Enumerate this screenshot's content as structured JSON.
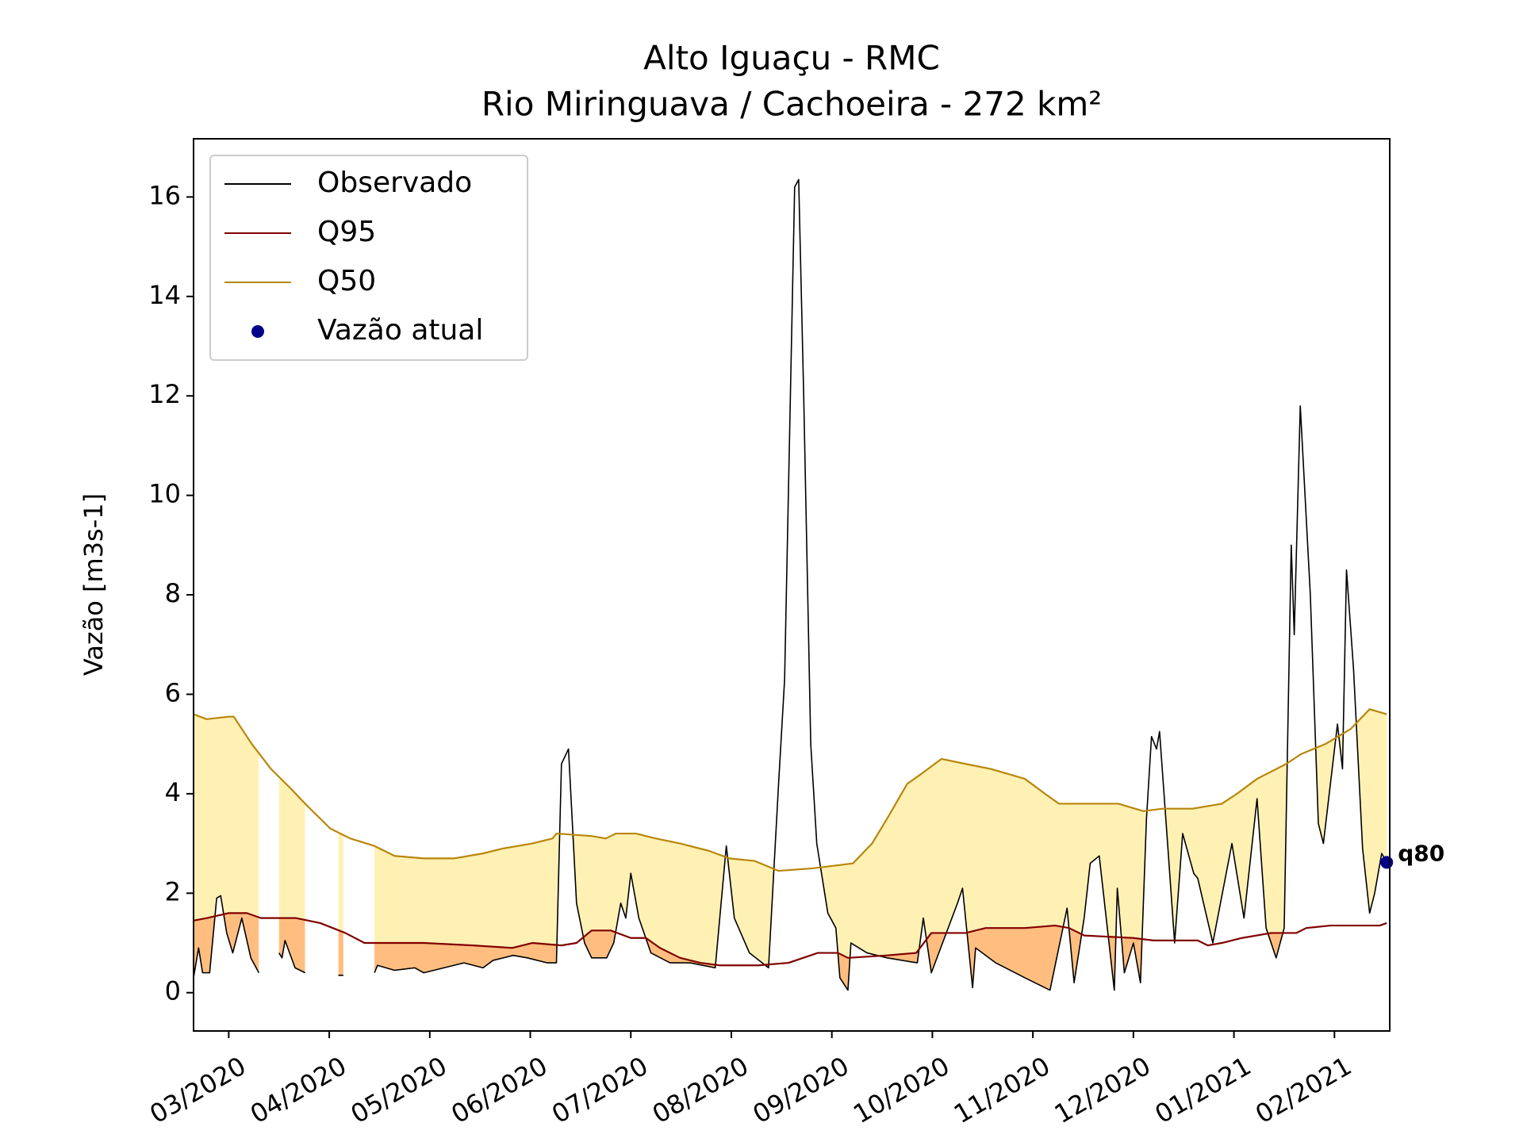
{
  "chart_data": {
    "type": "line",
    "title": "Alto Iguaçu - RMC",
    "subtitle": "Rio Miringuava / Cachoeira - 272 km²",
    "ylabel": "Vazão [m3s-1]",
    "xlim": [
      2.65,
      14.55
    ],
    "ylim": [
      -0.77,
      17.17
    ],
    "xticks": [
      {
        "value": 3,
        "label": "03/2020"
      },
      {
        "value": 4,
        "label": "04/2020"
      },
      {
        "value": 5,
        "label": "05/2020"
      },
      {
        "value": 6,
        "label": "06/2020"
      },
      {
        "value": 7,
        "label": "07/2020"
      },
      {
        "value": 8,
        "label": "08/2020"
      },
      {
        "value": 9,
        "label": "09/2020"
      },
      {
        "value": 10,
        "label": "10/2020"
      },
      {
        "value": 11,
        "label": "11/2020"
      },
      {
        "value": 12,
        "label": "12/2020"
      },
      {
        "value": 13,
        "label": "01/2021"
      },
      {
        "value": 14,
        "label": "02/2021"
      }
    ],
    "yticks": [
      0,
      2,
      4,
      6,
      8,
      10,
      12,
      14,
      16
    ],
    "grid": false,
    "legend": "upper left",
    "fills": [
      {
        "lower": 0,
        "upper": 2,
        "color": "#fff1b3"
      },
      {
        "lower": 0,
        "upper": 1,
        "color": "#ffbe80"
      }
    ],
    "series": [
      {
        "name": "Observado",
        "color": "#000000",
        "x": [
          2.65,
          2.7,
          2.74,
          2.81,
          2.88,
          2.92,
          2.98,
          3.04,
          3.13,
          3.22,
          3.3,
          3.4,
          3.5,
          3.53,
          3.56,
          3.66,
          3.76,
          3.9,
          4.09,
          4.14,
          4.3,
          4.45,
          4.48,
          4.65,
          4.85,
          4.94,
          5.14,
          5.34,
          5.53,
          5.63,
          5.83,
          5.97,
          6.17,
          6.26,
          6.31,
          6.38,
          6.46,
          6.54,
          6.61,
          6.76,
          6.83,
          6.9,
          6.95,
          7.0,
          7.08,
          7.2,
          7.39,
          7.59,
          7.84,
          7.95,
          8.03,
          8.18,
          8.37,
          8.47,
          8.53,
          8.63,
          8.67,
          8.72,
          8.79,
          8.85,
          8.96,
          9.04,
          9.08,
          9.16,
          9.19,
          9.35,
          9.55,
          9.85,
          9.91,
          9.99,
          10.25,
          10.3,
          10.4,
          10.43,
          10.63,
          10.92,
          11.17,
          11.34,
          11.41,
          11.51,
          11.57,
          11.66,
          11.81,
          11.84,
          11.91,
          12.0,
          12.07,
          12.13,
          12.18,
          12.23,
          12.26,
          12.34,
          12.41,
          12.49,
          12.6,
          12.64,
          12.79,
          12.98,
          13.1,
          13.23,
          13.32,
          13.42,
          13.5,
          13.57,
          13.6,
          13.66,
          13.76,
          13.84,
          13.89,
          14.03,
          14.08,
          14.12,
          14.19,
          14.28,
          14.35,
          14.4,
          14.47,
          14.52
        ],
        "values": [
          0.3,
          0.9,
          0.4,
          0.4,
          1.9,
          1.95,
          1.2,
          0.8,
          1.5,
          0.7,
          0.4,
          null,
          0.8,
          0.7,
          1.05,
          0.5,
          0.4,
          null,
          0.35,
          0.35,
          null,
          0.4,
          0.55,
          0.45,
          0.5,
          0.4,
          0.5,
          0.6,
          0.5,
          0.65,
          0.75,
          0.7,
          0.6,
          0.6,
          4.6,
          4.9,
          1.8,
          1.0,
          0.7,
          0.7,
          1.0,
          1.8,
          1.5,
          2.4,
          1.5,
          0.8,
          0.6,
          0.6,
          0.5,
          2.95,
          1.5,
          0.8,
          0.5,
          4.2,
          6.3,
          16.2,
          16.35,
          12.0,
          5.0,
          3.0,
          1.6,
          1.3,
          0.3,
          0.05,
          1.0,
          0.8,
          0.7,
          0.6,
          1.5,
          0.4,
          1.8,
          2.1,
          0.1,
          0.9,
          0.6,
          0.3,
          0.05,
          1.7,
          0.2,
          1.5,
          2.6,
          2.75,
          0.05,
          2.1,
          0.4,
          1.0,
          0.2,
          3.5,
          5.15,
          4.9,
          5.25,
          3.0,
          1.0,
          3.2,
          2.4,
          2.3,
          1.0,
          3.0,
          1.5,
          3.9,
          1.3,
          0.7,
          1.3,
          9.0,
          7.2,
          11.8,
          8.0,
          3.4,
          3.0,
          5.4,
          4.5,
          8.5,
          6.5,
          2.9,
          1.6,
          2.0,
          2.8,
          2.62
        ]
      },
      {
        "name": "Q95",
        "color": "#800000",
        "x": [
          2.65,
          2.78,
          3.0,
          3.18,
          3.32,
          3.67,
          3.91,
          4.16,
          4.35,
          4.94,
          5.43,
          5.82,
          6.02,
          6.31,
          6.46,
          6.61,
          6.8,
          7.0,
          7.15,
          7.29,
          7.49,
          7.69,
          7.88,
          8.27,
          8.57,
          8.86,
          9.06,
          9.16,
          9.55,
          9.84,
          9.99,
          10.33,
          10.53,
          10.92,
          11.22,
          11.36,
          11.51,
          12.0,
          12.2,
          12.64,
          12.74,
          12.88,
          13.08,
          13.37,
          13.62,
          13.72,
          13.96,
          14.45,
          14.52
        ],
        "values": [
          1.45,
          1.5,
          1.6,
          1.6,
          1.5,
          1.5,
          1.4,
          1.2,
          1.0,
          1.0,
          0.95,
          0.9,
          1.0,
          0.95,
          1.0,
          1.25,
          1.25,
          1.1,
          1.1,
          0.9,
          0.7,
          0.6,
          0.55,
          0.55,
          0.6,
          0.8,
          0.8,
          0.7,
          0.75,
          0.8,
          1.2,
          1.2,
          1.3,
          1.3,
          1.35,
          1.3,
          1.15,
          1.1,
          1.05,
          1.05,
          0.95,
          1.0,
          1.1,
          1.2,
          1.2,
          1.3,
          1.35,
          1.35,
          1.4
        ]
      },
      {
        "name": "Q50",
        "color": "#b8860b",
        "x": [
          2.65,
          2.78,
          3.0,
          3.05,
          3.23,
          3.42,
          3.62,
          3.76,
          4.01,
          4.21,
          4.45,
          4.65,
          4.94,
          5.24,
          5.53,
          5.73,
          6.02,
          6.22,
          6.26,
          6.61,
          6.75,
          6.85,
          7.05,
          7.25,
          7.49,
          7.78,
          7.98,
          8.23,
          8.47,
          8.81,
          9.21,
          9.4,
          9.55,
          9.75,
          9.89,
          10.09,
          10.33,
          10.58,
          10.92,
          11.12,
          11.26,
          11.85,
          12.1,
          12.29,
          12.59,
          12.88,
          13.03,
          13.23,
          13.52,
          13.67,
          13.91,
          14.16,
          14.35,
          14.52
        ],
        "values": [
          5.6,
          5.5,
          5.55,
          5.55,
          5.0,
          4.5,
          4.1,
          3.8,
          3.3,
          3.1,
          2.95,
          2.75,
          2.7,
          2.7,
          2.8,
          2.9,
          3.0,
          3.1,
          3.2,
          3.15,
          3.1,
          3.2,
          3.2,
          3.1,
          3.0,
          2.85,
          2.7,
          2.65,
          2.45,
          2.5,
          2.6,
          3.0,
          3.5,
          4.2,
          4.4,
          4.7,
          4.6,
          4.5,
          4.3,
          4.0,
          3.8,
          3.8,
          3.65,
          3.7,
          3.7,
          3.8,
          4.0,
          4.3,
          4.6,
          4.8,
          5.0,
          5.3,
          5.7,
          5.6
        ]
      },
      {
        "name": "Vazão atual",
        "type": "scatter",
        "color": "#00008b",
        "label": "q80",
        "x": [
          14.52
        ],
        "values": [
          2.62
        ]
      }
    ]
  }
}
